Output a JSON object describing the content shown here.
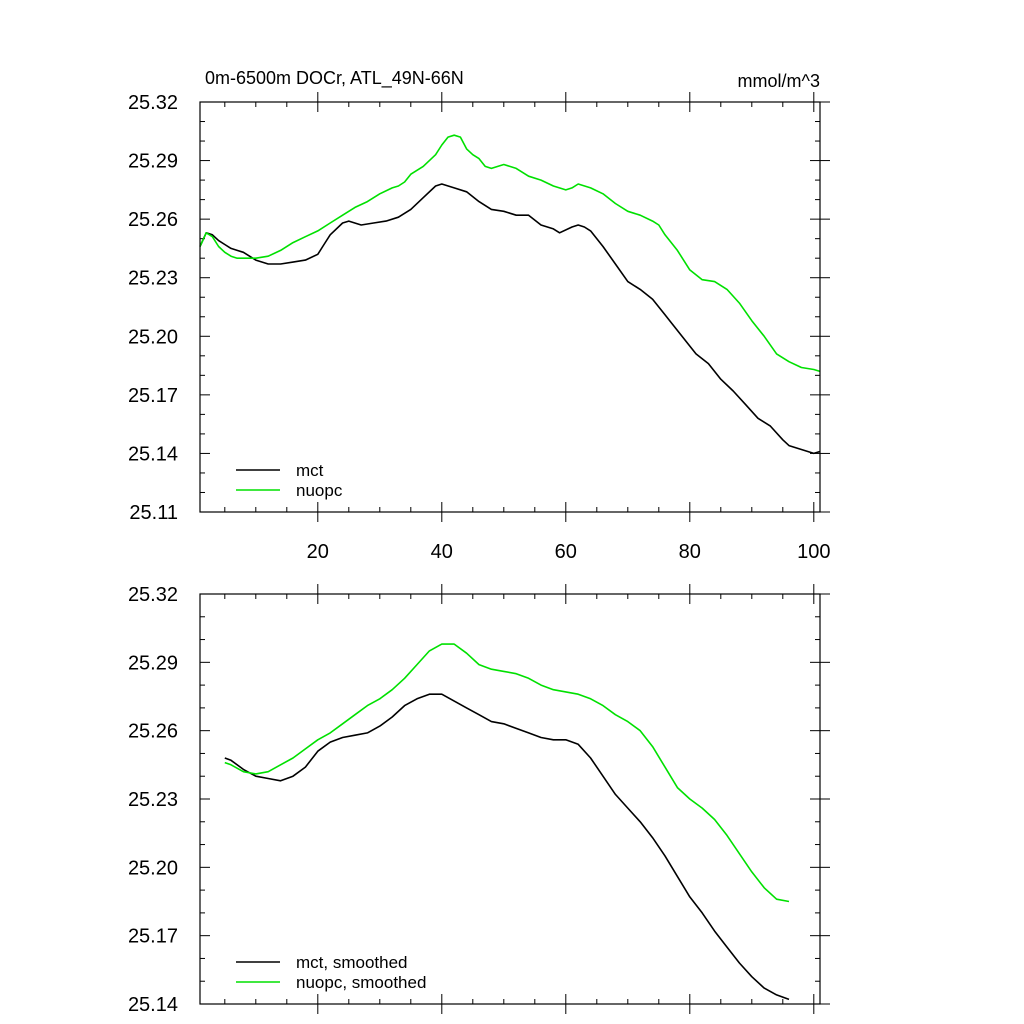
{
  "chart_data": [
    {
      "type": "line",
      "title": "0m-6500m DOCr, ATL_49N-66N",
      "units": "mmol/m^3",
      "xlim": [
        1,
        101
      ],
      "ylim": [
        25.11,
        25.32
      ],
      "x_tick_labels": [
        "20",
        "40",
        "60",
        "80",
        "100"
      ],
      "y_tick_labels": [
        "25.32",
        "25.29",
        "25.26",
        "25.23",
        "25.20",
        "25.17",
        "25.14",
        "25.11"
      ],
      "legend_position": "bottom-left",
      "series": [
        {
          "name": "mct",
          "color": "#000000",
          "points": [
            [
              1,
              25.246
            ],
            [
              2,
              25.253
            ],
            [
              3,
              25.252
            ],
            [
              4,
              25.249
            ],
            [
              5,
              25.247
            ],
            [
              6,
              25.245
            ],
            [
              7,
              25.244
            ],
            [
              8,
              25.243
            ],
            [
              9,
              25.241
            ],
            [
              10,
              25.239
            ],
            [
              12,
              25.237
            ],
            [
              14,
              25.237
            ],
            [
              16,
              25.238
            ],
            [
              18,
              25.239
            ],
            [
              20,
              25.242
            ],
            [
              21,
              25.247
            ],
            [
              22,
              25.252
            ],
            [
              24,
              25.258
            ],
            [
              25,
              25.259
            ],
            [
              27,
              25.257
            ],
            [
              29,
              25.258
            ],
            [
              31,
              25.259
            ],
            [
              33,
              25.261
            ],
            [
              35,
              25.265
            ],
            [
              37,
              25.271
            ],
            [
              39,
              25.277
            ],
            [
              40,
              25.278
            ],
            [
              42,
              25.276
            ],
            [
              44,
              25.274
            ],
            [
              46,
              25.269
            ],
            [
              48,
              25.265
            ],
            [
              50,
              25.264
            ],
            [
              52,
              25.262
            ],
            [
              54,
              25.262
            ],
            [
              56,
              25.257
            ],
            [
              58,
              25.255
            ],
            [
              59,
              25.253
            ],
            [
              61,
              25.256
            ],
            [
              62,
              25.257
            ],
            [
              63,
              25.256
            ],
            [
              64,
              25.254
            ],
            [
              66,
              25.246
            ],
            [
              68,
              25.237
            ],
            [
              70,
              25.228
            ],
            [
              72,
              25.224
            ],
            [
              74,
              25.219
            ],
            [
              76,
              25.211
            ],
            [
              77,
              25.207
            ],
            [
              79,
              25.199
            ],
            [
              81,
              25.191
            ],
            [
              83,
              25.186
            ],
            [
              85,
              25.178
            ],
            [
              87,
              25.172
            ],
            [
              89,
              25.165
            ],
            [
              91,
              25.158
            ],
            [
              93,
              25.154
            ],
            [
              95,
              25.147
            ],
            [
              96,
              25.144
            ],
            [
              98,
              25.142
            ],
            [
              100,
              25.14
            ],
            [
              101,
              25.141
            ]
          ]
        },
        {
          "name": "nuopc",
          "color": "#00e000",
          "points": [
            [
              1,
              25.246
            ],
            [
              2,
              25.253
            ],
            [
              3,
              25.251
            ],
            [
              4,
              25.246
            ],
            [
              5,
              25.243
            ],
            [
              6,
              25.241
            ],
            [
              7,
              25.24
            ],
            [
              8,
              25.24
            ],
            [
              10,
              25.24
            ],
            [
              12,
              25.241
            ],
            [
              14,
              25.244
            ],
            [
              16,
              25.248
            ],
            [
              18,
              25.251
            ],
            [
              20,
              25.254
            ],
            [
              22,
              25.258
            ],
            [
              24,
              25.262
            ],
            [
              26,
              25.266
            ],
            [
              28,
              25.269
            ],
            [
              30,
              25.273
            ],
            [
              32,
              25.276
            ],
            [
              33,
              25.277
            ],
            [
              34,
              25.279
            ],
            [
              35,
              25.283
            ],
            [
              37,
              25.287
            ],
            [
              39,
              25.293
            ],
            [
              40,
              25.298
            ],
            [
              41,
              25.302
            ],
            [
              42,
              25.303
            ],
            [
              43,
              25.302
            ],
            [
              44,
              25.296
            ],
            [
              45,
              25.293
            ],
            [
              46,
              25.291
            ],
            [
              47,
              25.287
            ],
            [
              48,
              25.286
            ],
            [
              50,
              25.288
            ],
            [
              52,
              25.286
            ],
            [
              54,
              25.282
            ],
            [
              56,
              25.28
            ],
            [
              58,
              25.277
            ],
            [
              60,
              25.275
            ],
            [
              61,
              25.276
            ],
            [
              62,
              25.278
            ],
            [
              64,
              25.276
            ],
            [
              66,
              25.273
            ],
            [
              68,
              25.268
            ],
            [
              70,
              25.264
            ],
            [
              72,
              25.262
            ],
            [
              74,
              25.259
            ],
            [
              75,
              25.257
            ],
            [
              76,
              25.252
            ],
            [
              78,
              25.244
            ],
            [
              80,
              25.234
            ],
            [
              82,
              25.229
            ],
            [
              84,
              25.228
            ],
            [
              86,
              25.224
            ],
            [
              88,
              25.217
            ],
            [
              90,
              25.208
            ],
            [
              92,
              25.2
            ],
            [
              94,
              25.191
            ],
            [
              96,
              25.187
            ],
            [
              98,
              25.184
            ],
            [
              100,
              25.183
            ],
            [
              101,
              25.182
            ]
          ]
        }
      ]
    },
    {
      "type": "line",
      "xlim": [
        1,
        101
      ],
      "ylim": [
        25.14,
        25.32
      ],
      "y_tick_labels": [
        "25.32",
        "25.29",
        "25.26",
        "25.23",
        "25.20",
        "25.17",
        "25.14"
      ],
      "legend_position": "bottom-left",
      "series": [
        {
          "name": "mct, smoothed",
          "color": "#000000",
          "points": [
            [
              5,
              25.248
            ],
            [
              6,
              25.247
            ],
            [
              8,
              25.243
            ],
            [
              10,
              25.24
            ],
            [
              12,
              25.239
            ],
            [
              14,
              25.238
            ],
            [
              16,
              25.24
            ],
            [
              18,
              25.244
            ],
            [
              20,
              25.251
            ],
            [
              22,
              25.255
            ],
            [
              24,
              25.257
            ],
            [
              26,
              25.258
            ],
            [
              28,
              25.259
            ],
            [
              30,
              25.262
            ],
            [
              32,
              25.266
            ],
            [
              34,
              25.271
            ],
            [
              36,
              25.274
            ],
            [
              38,
              25.276
            ],
            [
              40,
              25.276
            ],
            [
              42,
              25.273
            ],
            [
              44,
              25.27
            ],
            [
              46,
              25.267
            ],
            [
              48,
              25.264
            ],
            [
              50,
              25.263
            ],
            [
              52,
              25.261
            ],
            [
              54,
              25.259
            ],
            [
              56,
              25.257
            ],
            [
              58,
              25.256
            ],
            [
              60,
              25.256
            ],
            [
              62,
              25.254
            ],
            [
              64,
              25.248
            ],
            [
              66,
              25.24
            ],
            [
              68,
              25.232
            ],
            [
              70,
              25.226
            ],
            [
              72,
              25.22
            ],
            [
              74,
              25.213
            ],
            [
              76,
              25.205
            ],
            [
              78,
              25.196
            ],
            [
              80,
              25.187
            ],
            [
              82,
              25.18
            ],
            [
              84,
              25.172
            ],
            [
              86,
              25.165
            ],
            [
              88,
              25.158
            ],
            [
              90,
              25.152
            ],
            [
              92,
              25.147
            ],
            [
              94,
              25.144
            ],
            [
              96,
              25.142
            ]
          ]
        },
        {
          "name": "nuopc, smoothed",
          "color": "#00e000",
          "points": [
            [
              5,
              25.246
            ],
            [
              6,
              25.245
            ],
            [
              8,
              25.242
            ],
            [
              10,
              25.241
            ],
            [
              12,
              25.242
            ],
            [
              14,
              25.245
            ],
            [
              16,
              25.248
            ],
            [
              18,
              25.252
            ],
            [
              20,
              25.256
            ],
            [
              22,
              25.259
            ],
            [
              24,
              25.263
            ],
            [
              26,
              25.267
            ],
            [
              28,
              25.271
            ],
            [
              30,
              25.274
            ],
            [
              32,
              25.278
            ],
            [
              34,
              25.283
            ],
            [
              36,
              25.289
            ],
            [
              38,
              25.295
            ],
            [
              40,
              25.298
            ],
            [
              42,
              25.298
            ],
            [
              44,
              25.294
            ],
            [
              46,
              25.289
            ],
            [
              48,
              25.287
            ],
            [
              50,
              25.286
            ],
            [
              52,
              25.285
            ],
            [
              54,
              25.283
            ],
            [
              56,
              25.28
            ],
            [
              58,
              25.278
            ],
            [
              60,
              25.277
            ],
            [
              62,
              25.276
            ],
            [
              64,
              25.274
            ],
            [
              66,
              25.271
            ],
            [
              68,
              25.267
            ],
            [
              70,
              25.264
            ],
            [
              72,
              25.26
            ],
            [
              74,
              25.253
            ],
            [
              76,
              25.244
            ],
            [
              78,
              25.235
            ],
            [
              80,
              25.23
            ],
            [
              82,
              25.226
            ],
            [
              84,
              25.221
            ],
            [
              86,
              25.214
            ],
            [
              88,
              25.206
            ],
            [
              90,
              25.198
            ],
            [
              92,
              25.191
            ],
            [
              94,
              25.186
            ],
            [
              96,
              25.185
            ]
          ]
        }
      ]
    }
  ]
}
